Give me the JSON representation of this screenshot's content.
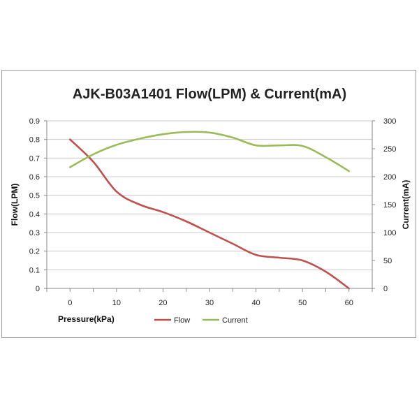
{
  "chart_data": {
    "type": "line",
    "title": "AJK-B03A1401 Flow(LPM) & Current(mA)",
    "xlabel": "Pressure(kPa)",
    "ylabel": "Flow(LPM)",
    "y2label": "Current(mA)",
    "xlim": [
      -5,
      65
    ],
    "ylim": [
      0,
      0.9
    ],
    "y2lim": [
      0,
      300
    ],
    "x_ticks": [
      "0",
      "10",
      "20",
      "30",
      "40",
      "50",
      "60"
    ],
    "y_ticks": [
      "0",
      "0.1",
      "0.2",
      "0.3",
      "0.4",
      "0.5",
      "0.6",
      "0.7",
      "0.8",
      "0.9"
    ],
    "y2_ticks": [
      "0",
      "50",
      "100",
      "150",
      "200",
      "250",
      "300"
    ],
    "grid": "horizontal",
    "legend_position": "bottom",
    "series": [
      {
        "name": "Flow",
        "axis": "left",
        "color": "#c0504d",
        "x": [
          0,
          5,
          10,
          15,
          20,
          25,
          30,
          35,
          40,
          45,
          50,
          55,
          60
        ],
        "y": [
          0.8,
          0.68,
          0.52,
          0.45,
          0.41,
          0.36,
          0.3,
          0.24,
          0.18,
          0.165,
          0.15,
          0.09,
          0.0
        ]
      },
      {
        "name": "Current",
        "axis": "right",
        "color": "#9bbb59",
        "x": [
          0,
          5,
          10,
          15,
          20,
          25,
          30,
          35,
          40,
          45,
          50,
          55,
          60
        ],
        "y": [
          217,
          240,
          257,
          268,
          276,
          280,
          279,
          270,
          256,
          256,
          255,
          235,
          210
        ]
      }
    ]
  }
}
